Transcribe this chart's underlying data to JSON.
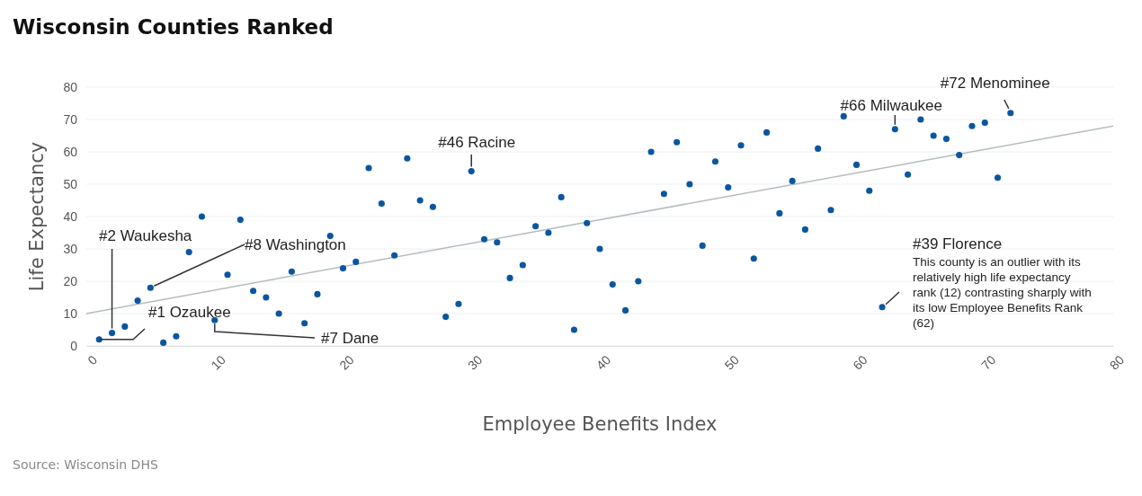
{
  "chart_data": {
    "type": "scatter",
    "title": "Wisconsin Counties Ranked",
    "xlabel": "Employee Benefits Index",
    "ylabel": "Life Expectancy",
    "xlim": [
      0,
      80
    ],
    "xticks": [
      0,
      10,
      20,
      30,
      40,
      50,
      60,
      70,
      80
    ],
    "ylim": [
      0,
      80
    ],
    "yticks": [
      0,
      10,
      20,
      30,
      40,
      50,
      60,
      70,
      80
    ],
    "grid": "y",
    "series": [
      {
        "type": "line",
        "color": "#b4bcc0",
        "x": [
          0,
          80
        ],
        "values": [
          10,
          68
        ]
      },
      {
        "marker": "circle",
        "color": "#0a56a0",
        "x": [
          1,
          2,
          3,
          4,
          5,
          6,
          7,
          8,
          9,
          10,
          11,
          12,
          13,
          14,
          15,
          16,
          17,
          18,
          19,
          20,
          21,
          22,
          23,
          24,
          25,
          26,
          27,
          28,
          29,
          30,
          31,
          32,
          33,
          34,
          35,
          36,
          37,
          38,
          39,
          40,
          41,
          42,
          43,
          44,
          45,
          46,
          47,
          48,
          49,
          50,
          51,
          52,
          53,
          54,
          55,
          56,
          57,
          58,
          59,
          60,
          61,
          62,
          63,
          64,
          65,
          66,
          67,
          68,
          69,
          70,
          71,
          72
        ],
        "values": [
          2,
          4,
          6,
          14,
          18,
          1,
          3,
          29,
          40,
          8,
          22,
          39,
          17,
          15,
          10,
          23,
          7,
          16,
          34,
          24,
          26,
          55,
          44,
          28,
          58,
          45,
          43,
          9,
          13,
          54,
          33,
          32,
          21,
          25,
          37,
          35,
          46,
          5,
          38,
          30,
          19,
          11,
          20,
          60,
          47,
          63,
          50,
          31,
          57,
          49,
          62,
          27,
          66,
          41,
          51,
          36,
          61,
          42,
          71,
          56,
          48,
          12,
          67,
          53,
          70,
          65,
          64,
          59,
          68,
          69,
          52,
          72
        ]
      }
    ],
    "annotations": [
      {
        "text": "#1 Ozaukee",
        "x": 1,
        "y": 2
      },
      {
        "text": "#2 Waukesha",
        "x": 2,
        "y": 4
      },
      {
        "text": "#8 Washington",
        "x": 5,
        "y": 18
      },
      {
        "text": "#7 Dane",
        "x": 10,
        "y": 8
      },
      {
        "text": "#46 Racine",
        "x": 30,
        "y": 54
      },
      {
        "text": "#66 Milwaukee",
        "x": 63,
        "y": 67
      },
      {
        "text": "#72 Menominee",
        "x": 72,
        "y": 72
      },
      "#39 Florence",
      "This county is an outlier with its relatively high life expectancy rank (12) contrasting sharply with its low Employee Benefits Rank (62)",
      "Source: Wisconsin DHS"
    ]
  }
}
